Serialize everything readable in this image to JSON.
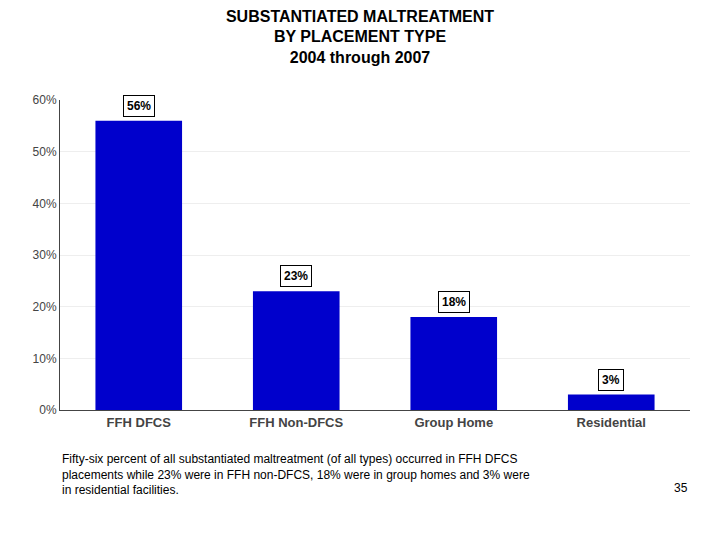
{
  "chart_data": {
    "type": "bar",
    "title": "SUBSTANTIATED MALTREATMENT\nBY PLACEMENT TYPE\n2004 through 2007",
    "categories": [
      "FFH DFCS",
      "FFH Non-DFCS",
      "Group Home",
      "Residential"
    ],
    "values": [
      56,
      23,
      18,
      3
    ],
    "value_labels": [
      "56%",
      "23%",
      "18%",
      "3%"
    ],
    "data_labels": true,
    "color": "#0000CC",
    "ylim": [
      0,
      60
    ],
    "yticks": [
      {
        "value": 0,
        "label": "0%"
      },
      {
        "value": 10,
        "label": "10%"
      },
      {
        "value": 20,
        "label": "20%"
      },
      {
        "value": 30,
        "label": "30%"
      },
      {
        "value": 40,
        "label": "40%"
      },
      {
        "value": 50,
        "label": "50%"
      },
      {
        "value": 60,
        "label": "60%"
      }
    ],
    "grid": true,
    "annotations": [
      "Fifty-six percent of all substantiated maltreatment (of all types) occurred in FFH DFCS\nplacements while 23% were in FFH non-DFCS, 18% were in group homes and 3% were\nin residential facilities.",
      "35"
    ]
  }
}
